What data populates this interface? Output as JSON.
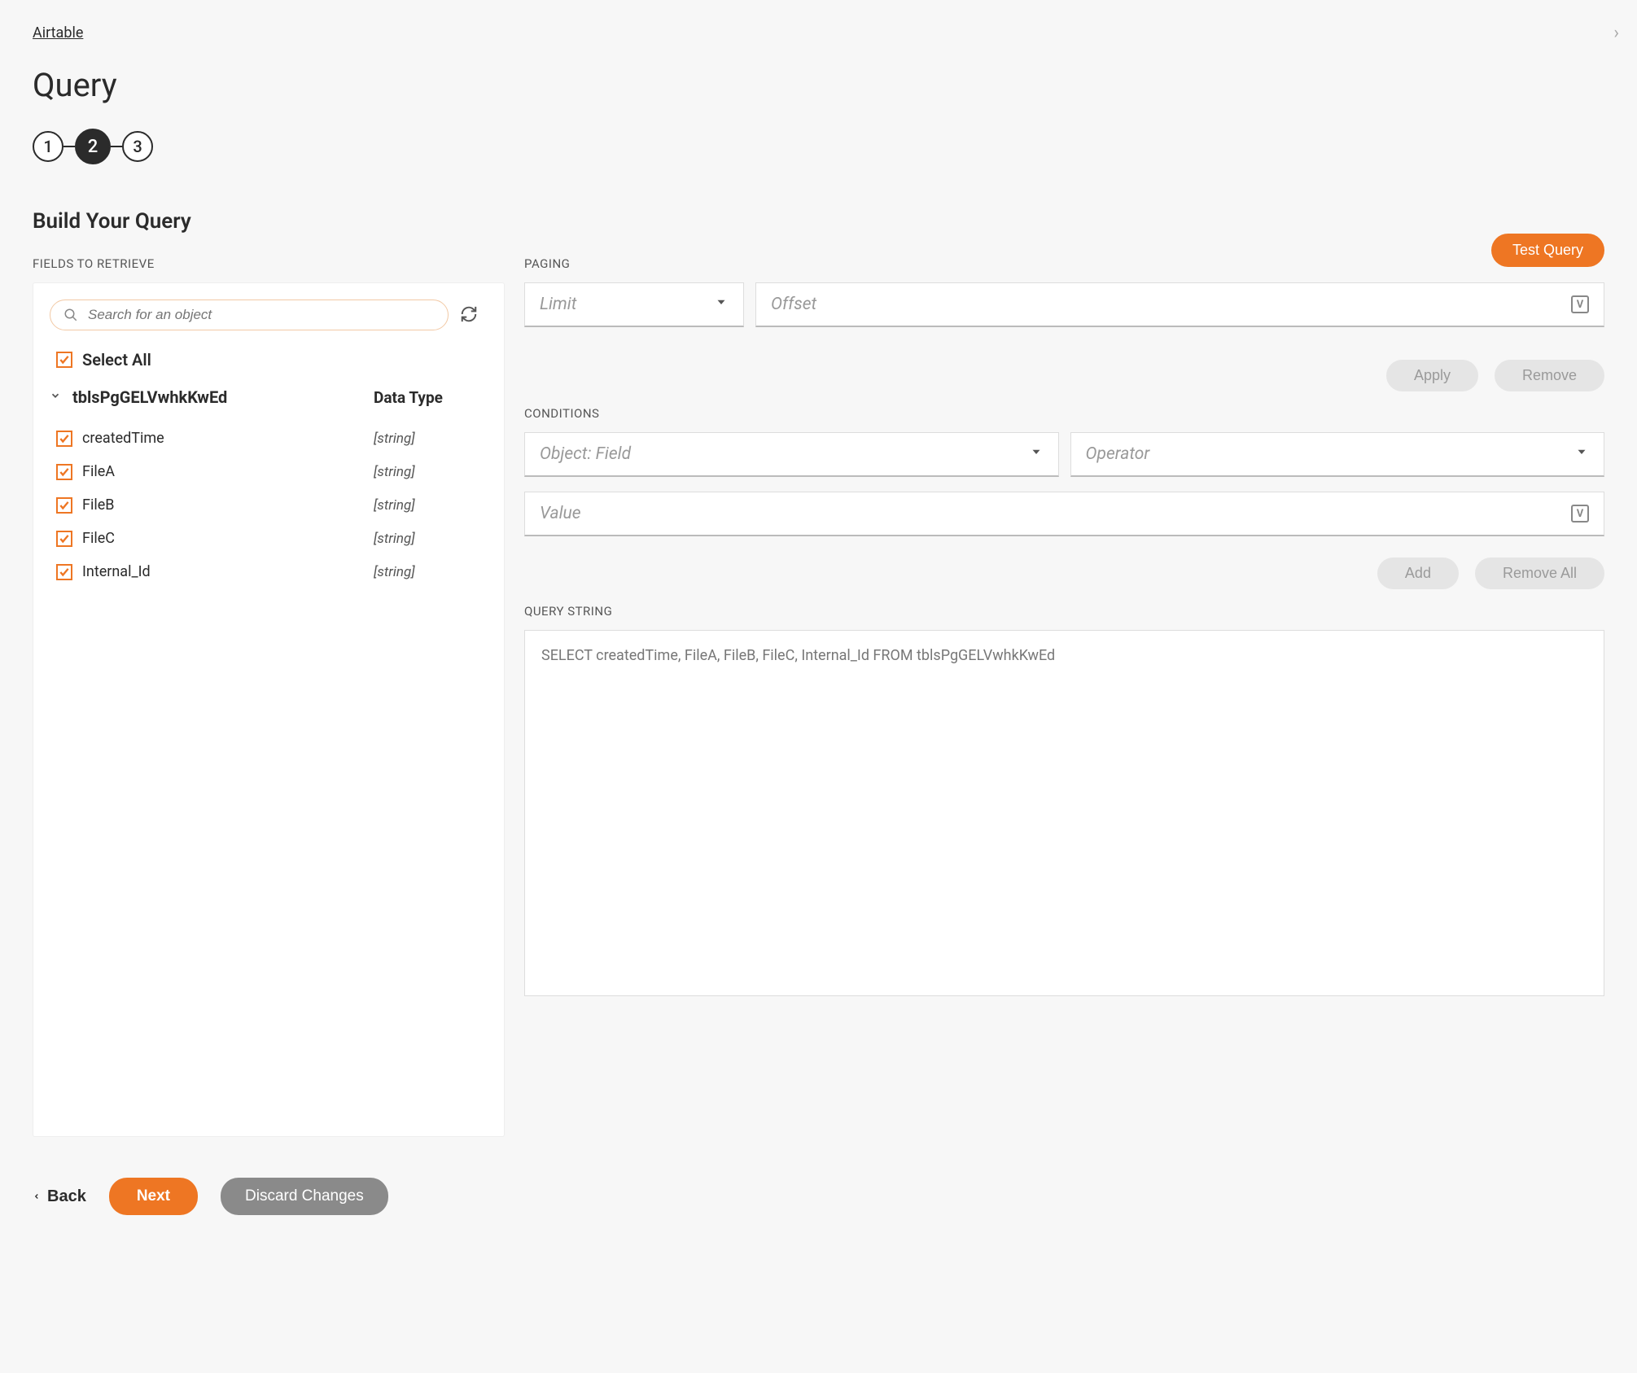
{
  "colors": {
    "accent": "#ee7623",
    "background": "#f7f7f7",
    "disabled_bg": "#e5e5e5",
    "disabled_text": "#9a9a9a",
    "text": "#2b2b2b",
    "placeholder": "#999999"
  },
  "breadcrumb": "Airtable",
  "page_title": "Query",
  "stepper": {
    "steps": [
      "1",
      "2",
      "3"
    ],
    "active_index": 1
  },
  "section_title": "Build Your Query",
  "fields": {
    "label": "FIELDS TO RETRIEVE",
    "search_placeholder": "Search for an object",
    "select_all_label": "Select All",
    "select_all_checked": true,
    "table_name": "tblsPgGELVwhkKwEd",
    "data_type_header": "Data Type",
    "items": [
      {
        "name": "createdTime",
        "type": "[string]",
        "checked": true
      },
      {
        "name": "FileA",
        "type": "[string]",
        "checked": true
      },
      {
        "name": "FileB",
        "type": "[string]",
        "checked": true
      },
      {
        "name": "FileC",
        "type": "[string]",
        "checked": true
      },
      {
        "name": "Internal_Id",
        "type": "[string]",
        "checked": true
      }
    ]
  },
  "paging": {
    "label": "PAGING",
    "limit_placeholder": "Limit",
    "offset_placeholder": "Offset"
  },
  "buttons": {
    "test_query": "Test Query",
    "apply": "Apply",
    "remove": "Remove",
    "add": "Add",
    "remove_all": "Remove All",
    "back": "Back",
    "next": "Next",
    "discard": "Discard Changes"
  },
  "conditions": {
    "label": "CONDITIONS",
    "object_field_placeholder": "Object: Field",
    "operator_placeholder": "Operator",
    "value_placeholder": "Value"
  },
  "query_string": {
    "label": "QUERY STRING",
    "value": "SELECT createdTime, FileA, FileB, FileC, Internal_Id FROM tblsPgGELVwhkKwEd"
  }
}
